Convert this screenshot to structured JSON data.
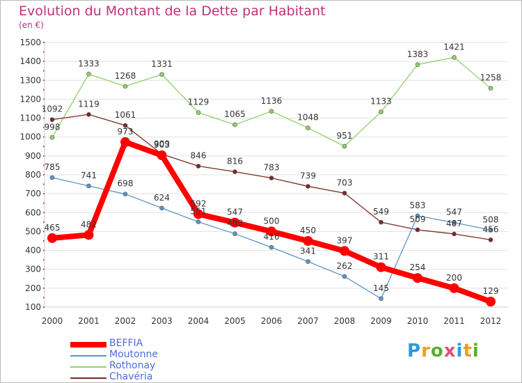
{
  "title": "Evolution du Montant de la Dette par Habitant",
  "subtitle": "(en €)",
  "brand": "Proxiti",
  "brand_letters": [
    {
      "ch": "P",
      "color": "#2a9ad8"
    },
    {
      "ch": "r",
      "color": "#e8a020"
    },
    {
      "ch": "o",
      "color": "#56b030"
    },
    {
      "ch": "x",
      "color": "#e04f7a"
    },
    {
      "ch": "i",
      "color": "#2a9ad8"
    },
    {
      "ch": "t",
      "color": "#e8a020"
    },
    {
      "ch": "i",
      "color": "#56b030"
    }
  ],
  "chart_data": {
    "type": "line",
    "title": "Evolution du Montant de la Dette par Habitant",
    "subtitle": "(en €)",
    "x": [
      "2000",
      "2001",
      "2002",
      "2003",
      "2004",
      "2005",
      "2006",
      "2007",
      "2008",
      "2009",
      "2010",
      "2011",
      "2012"
    ],
    "ylim": [
      100,
      1500
    ],
    "yticks": [
      100,
      200,
      300,
      400,
      500,
      600,
      700,
      800,
      900,
      1000,
      1100,
      1200,
      1300,
      1400,
      1500
    ],
    "grid": "horizontal",
    "legend_position": "bottom-left",
    "series": [
      {
        "name": "BEFFIA",
        "color": "#ff0000",
        "values": [
          465,
          482,
          973,
          903,
          592,
          547,
          500,
          450,
          397,
          311,
          254,
          200,
          129
        ],
        "labels": [
          "465",
          "482",
          "973",
          "903",
          "592",
          "547",
          "500",
          "450",
          "397",
          "311",
          "254",
          "200",
          "129"
        ]
      },
      {
        "name": "Moutonne",
        "color": "#5b96c8",
        "values": [
          785,
          741,
          698,
          624,
          551,
          488,
          416,
          341,
          262,
          145,
          583,
          547,
          508
        ],
        "labels": [
          "785",
          "741",
          "698",
          "624",
          "551",
          "488",
          "416",
          "341",
          "262",
          "145",
          "583",
          "547",
          "508"
        ]
      },
      {
        "name": "Rothonay",
        "color": "#8fd06a",
        "values": [
          998,
          1333,
          1268,
          1331,
          1129,
          1065,
          1136,
          1048,
          951,
          1133,
          1383,
          1421,
          1258
        ],
        "labels": [
          "998",
          "1333",
          "1268",
          "1331",
          "1129",
          "1065",
          "1136",
          "1048",
          "951",
          "1133",
          "1383",
          "1421",
          "1258"
        ]
      },
      {
        "name": "Chavéria",
        "color": "#7a2a2a",
        "values": [
          1092,
          1119,
          1061,
          909,
          846,
          816,
          783,
          739,
          703,
          549,
          509,
          487,
          456
        ],
        "labels": [
          "1092",
          "1119",
          "1061",
          "909",
          "846",
          "816",
          "783",
          "739",
          "703",
          "549",
          "509",
          "487",
          "456"
        ]
      }
    ]
  }
}
